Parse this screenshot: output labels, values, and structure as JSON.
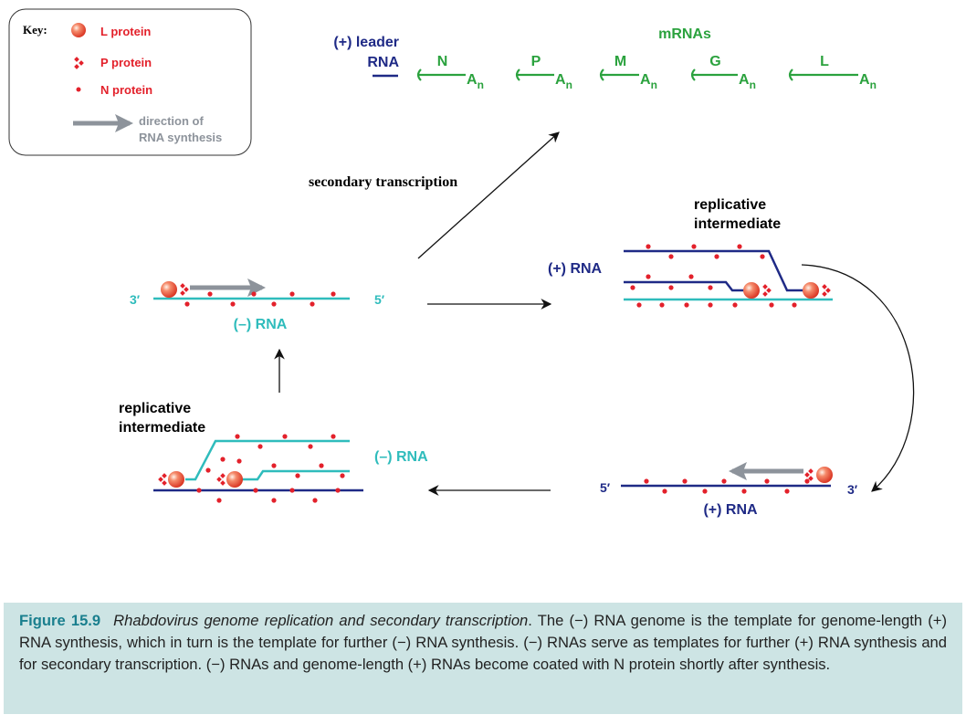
{
  "key": {
    "title": "Key:",
    "l_protein": "L protein",
    "p_protein": "P protein",
    "n_protein": "N protein",
    "direction": [
      "direction of",
      "RNA synthesis"
    ]
  },
  "leader": [
    "(+) leader",
    "RNA"
  ],
  "mrnas": {
    "title": "mRNAs",
    "genes": [
      {
        "gene": "N",
        "tail": "A",
        "tail_sub": "n"
      },
      {
        "gene": "P",
        "tail": "A",
        "tail_sub": "n"
      },
      {
        "gene": "M",
        "tail": "A",
        "tail_sub": "n"
      },
      {
        "gene": "G",
        "tail": "A",
        "tail_sub": "n"
      },
      {
        "gene": "L",
        "tail": "A",
        "tail_sub": "n"
      }
    ]
  },
  "secondary_transcription": "secondary transcription",
  "genome": {
    "end3": "3′",
    "end5": "5′",
    "label": "(–) RNA"
  },
  "ri_plus": {
    "title": [
      "replicative",
      "intermediate"
    ],
    "label": "(+) RNA"
  },
  "antigenome": {
    "end5": "5′",
    "end3": "3′",
    "label": "(+) RNA"
  },
  "ri_minus": {
    "title": [
      "replicative",
      "intermediate"
    ],
    "label": "(–) RNA"
  },
  "caption": {
    "label": "Figure 15.9",
    "title": "Rhabdovirus genome replication and secondary transcription",
    "text": ". The (−) RNA genome is the template for genome-length (+) RNA synthesis, which in turn is the template for further (−) RNA synthesis. (−) RNAs serve as templates for further (+) RNA synthesis and for secondary transcription. (−) RNAs and genome-length (+) RNAs become coated with N protein shortly after synthesis."
  }
}
